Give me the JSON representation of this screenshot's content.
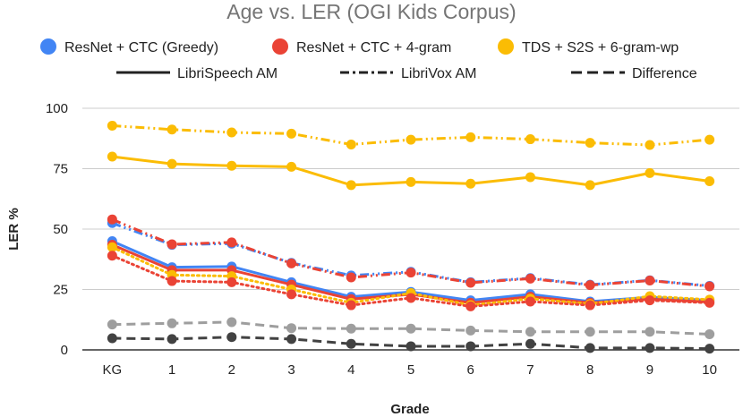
{
  "chart_data": {
    "type": "line",
    "title": "Age vs. LER (OGI Kids Corpus)",
    "xlabel": "Grade",
    "ylabel": "LER %",
    "ylim": [
      0,
      100
    ],
    "yticks": [
      0,
      25,
      50,
      75,
      100
    ],
    "grid": true,
    "categories": [
      "KG",
      "1",
      "2",
      "3",
      "4",
      "5",
      "6",
      "7",
      "8",
      "9",
      "10"
    ],
    "models": [
      {
        "name": "ResNet + CTC (Greedy)",
        "color": "#4285f4"
      },
      {
        "name": "ResNet + CTC + 4-gram",
        "color": "#ea4335"
      },
      {
        "name": "TDS + S2S + 6-gram-wp",
        "color": "#fbbc04"
      }
    ],
    "line_styles": [
      {
        "name": "LibriSpeech AM",
        "style": "solid"
      },
      {
        "name": "LibriVox AM",
        "style": "dash-dot"
      },
      {
        "name": "Difference",
        "style": "dashed"
      }
    ],
    "series": [
      {
        "name": "TDS + S2S + 6-gram-wp (LibriVox AM)",
        "color": "#fbbc04",
        "style": "dashdot",
        "values": [
          92.8,
          91.2,
          90.0,
          89.5,
          85.0,
          87.0,
          88.0,
          87.2,
          85.7,
          84.8,
          87.0
        ]
      },
      {
        "name": "TDS + S2S + 6-gram-wp (LibriSpeech AM)",
        "color": "#fbbc04",
        "style": "solid",
        "values": [
          80.0,
          77.0,
          76.2,
          75.8,
          68.2,
          69.5,
          68.8,
          71.5,
          68.2,
          73.2,
          69.8
        ]
      },
      {
        "name": "ResNet + CTC (Greedy) (LibriVox AM)",
        "color": "#4285f4",
        "style": "dashdot",
        "values": [
          52.5,
          43.5,
          44.0,
          36.0,
          30.8,
          32.3,
          28.0,
          29.7,
          27.0,
          28.8,
          26.5
        ]
      },
      {
        "name": "ResNet + CTC + 4-gram (LibriVox AM)",
        "color": "#ea4335",
        "style": "dashdot",
        "values": [
          54.0,
          43.7,
          44.5,
          35.8,
          30.0,
          32.0,
          27.8,
          29.5,
          26.8,
          28.7,
          26.3
        ]
      },
      {
        "name": "ResNet + CTC (Greedy) (LibriSpeech AM)",
        "color": "#4285f4",
        "style": "solid",
        "values": [
          45.0,
          34.2,
          34.5,
          28.0,
          22.0,
          24.0,
          20.5,
          23.0,
          20.0,
          21.8,
          20.5
        ]
      },
      {
        "name": "ResNet + CTC + 4-gram (LibriSpeech AM)",
        "color": "#ea4335",
        "style": "solid",
        "values": [
          43.5,
          33.0,
          33.0,
          27.0,
          21.0,
          23.0,
          19.5,
          22.0,
          19.5,
          21.0,
          19.8
        ]
      },
      {
        "name": "TDS + S2S + 6-gram-wp (LibriSpeech AM, dotted)",
        "color": "#fbbc04",
        "style": "dotted",
        "values": [
          42.5,
          31.0,
          30.5,
          25.0,
          19.5,
          23.5,
          18.5,
          21.2,
          19.0,
          22.2,
          20.8
        ]
      },
      {
        "name": "ResNet + CTC + 4-gram (LibriSpeech AM, dotted)",
        "color": "#ea4335",
        "style": "dotted",
        "values": [
          39.0,
          28.5,
          28.0,
          23.0,
          18.5,
          21.5,
          18.0,
          20.0,
          18.5,
          20.5,
          19.5
        ]
      },
      {
        "name": "Difference (gray)",
        "color": "#9e9e9e",
        "style": "dashed",
        "values": [
          10.5,
          11.0,
          11.5,
          9.0,
          8.8,
          8.8,
          8.0,
          7.5,
          7.5,
          7.5,
          6.5
        ]
      },
      {
        "name": "Difference (dark)",
        "color": "#424242",
        "style": "dashed",
        "values": [
          4.8,
          4.5,
          5.3,
          4.5,
          2.5,
          1.5,
          1.5,
          2.5,
          0.8,
          0.8,
          0.5
        ]
      }
    ]
  }
}
